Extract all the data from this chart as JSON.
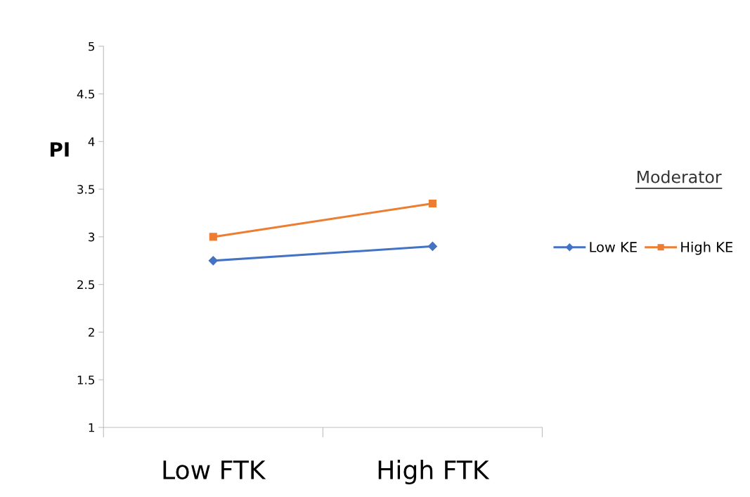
{
  "chart_data": {
    "type": "line",
    "ylabel": "PI",
    "legend_title": "Moderator",
    "categories": [
      "Low FTK",
      "High FTK"
    ],
    "series": [
      {
        "name": "Low KE",
        "color": "#4472c4",
        "marker": "diamond",
        "values": [
          2.75,
          2.9
        ]
      },
      {
        "name": "High KE",
        "color": "#ed7d31",
        "marker": "square",
        "values": [
          3.0,
          3.35
        ]
      }
    ],
    "ylim": [
      1,
      5
    ],
    "yticks": [
      1,
      1.5,
      2,
      2.5,
      3,
      3.5,
      4,
      4.5,
      5
    ],
    "grid": false,
    "legend": "right",
    "line_style": "solid"
  }
}
